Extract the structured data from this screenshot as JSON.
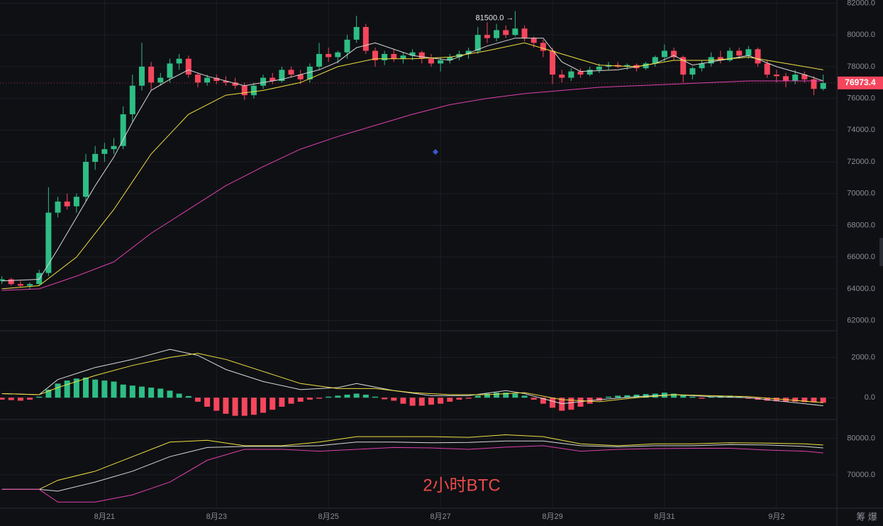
{
  "chart_data": [
    {
      "type": "candlestick",
      "categories": [
        null,
        null,
        null,
        null,
        null,
        null,
        null,
        null,
        null,
        null,
        null,
        "8月21",
        null,
        null,
        null,
        null,
        null,
        null,
        null,
        null,
        null,
        null,
        null,
        "8月23",
        null,
        null,
        null,
        null,
        null,
        null,
        null,
        null,
        null,
        null,
        null,
        "8月25",
        null,
        null,
        null,
        null,
        null,
        null,
        null,
        null,
        null,
        null,
        null,
        "8月27",
        null,
        null,
        null,
        null,
        null,
        null,
        null,
        null,
        null,
        null,
        null,
        "8月29",
        null,
        null,
        null,
        null,
        null,
        null,
        null,
        null,
        null,
        null,
        null,
        "8月31",
        null,
        null,
        null,
        null,
        null,
        null,
        null,
        null,
        null,
        null,
        null,
        "9月2",
        null,
        null,
        null,
        null,
        null
      ],
      "ohlc": [
        [
          64500,
          64800,
          64300,
          64600
        ],
        [
          64600,
          64700,
          64200,
          64300
        ],
        [
          64300,
          64500,
          64100,
          64200
        ],
        [
          64200,
          64400,
          64000,
          64300
        ],
        [
          64300,
          65200,
          64200,
          65000
        ],
        [
          65000,
          70400,
          64800,
          68800
        ],
        [
          68800,
          69800,
          68500,
          69500
        ],
        [
          69500,
          70000,
          69000,
          69200
        ],
        [
          69200,
          70000,
          68800,
          69800
        ],
        [
          69800,
          72500,
          69500,
          72000
        ],
        [
          72000,
          73000,
          71500,
          72500
        ],
        [
          72500,
          73200,
          72000,
          72800
        ],
        [
          72800,
          73500,
          72500,
          73000
        ],
        [
          73000,
          75500,
          72800,
          75000
        ],
        [
          75000,
          77500,
          74500,
          76800
        ],
        [
          76800,
          79500,
          76500,
          78000
        ],
        [
          78000,
          78300,
          76500,
          77000
        ],
        [
          77000,
          77600,
          76800,
          77300
        ],
        [
          77300,
          78500,
          77000,
          78200
        ],
        [
          78200,
          78800,
          77800,
          78500
        ],
        [
          78500,
          78700,
          77300,
          77500
        ],
        [
          77500,
          77600,
          76700,
          77000
        ],
        [
          77000,
          77500,
          76800,
          77300
        ],
        [
          77300,
          77500,
          76900,
          77100
        ],
        [
          77100,
          77400,
          76800,
          77000
        ],
        [
          77000,
          77300,
          76600,
          76800
        ],
        [
          76800,
          77000,
          75900,
          76200
        ],
        [
          76200,
          77000,
          76000,
          76800
        ],
        [
          76800,
          77500,
          76600,
          77300
        ],
        [
          77300,
          77600,
          76900,
          77100
        ],
        [
          77100,
          78000,
          77000,
          77800
        ],
        [
          77800,
          78000,
          77300,
          77500
        ],
        [
          77500,
          77800,
          76900,
          77200
        ],
        [
          77200,
          78200,
          77000,
          78000
        ],
        [
          78000,
          79500,
          77800,
          78800
        ],
        [
          78800,
          79200,
          78300,
          78600
        ],
        [
          78600,
          79000,
          78200,
          78900
        ],
        [
          78900,
          80000,
          78500,
          79700
        ],
        [
          79700,
          81200,
          79500,
          80500
        ],
        [
          80500,
          80700,
          78800,
          79000
        ],
        [
          79000,
          79200,
          78000,
          78400
        ],
        [
          78400,
          79000,
          78100,
          78800
        ],
        [
          78800,
          79100,
          78300,
          78500
        ],
        [
          78500,
          78900,
          78200,
          78700
        ],
        [
          78700,
          79100,
          78400,
          78900
        ],
        [
          78900,
          79000,
          78200,
          78500
        ],
        [
          78500,
          78800,
          78000,
          78200
        ],
        [
          78200,
          78600,
          77700,
          78400
        ],
        [
          78400,
          78800,
          78200,
          78600
        ],
        [
          78600,
          79000,
          78400,
          78800
        ],
        [
          78800,
          79200,
          78500,
          79000
        ],
        [
          79000,
          80500,
          78800,
          80000
        ],
        [
          80000,
          80800,
          79500,
          79800
        ],
        [
          79800,
          80700,
          79600,
          80300
        ],
        [
          80300,
          80600,
          79800,
          80000
        ],
        [
          80000,
          81500,
          79900,
          80400
        ],
        [
          80400,
          80600,
          79600,
          79800
        ],
        [
          79800,
          79900,
          79200,
          79500
        ],
        [
          79500,
          79700,
          78600,
          79000
        ],
        [
          79000,
          79200,
          76900,
          77500
        ],
        [
          77500,
          77800,
          77000,
          77300
        ],
        [
          77300,
          77900,
          77100,
          77700
        ],
        [
          77700,
          77900,
          77300,
          77500
        ],
        [
          77500,
          78000,
          77400,
          77800
        ],
        [
          77800,
          78200,
          77600,
          78000
        ],
        [
          78000,
          78300,
          77800,
          78100
        ],
        [
          78100,
          78300,
          77900,
          78000
        ],
        [
          78000,
          78200,
          77800,
          78100
        ],
        [
          78100,
          78200,
          77700,
          77900
        ],
        [
          77900,
          78300,
          77800,
          78200
        ],
        [
          78200,
          78700,
          78000,
          78600
        ],
        [
          78600,
          79400,
          78300,
          79000
        ],
        [
          79000,
          79200,
          78400,
          78600
        ],
        [
          78600,
          78700,
          77000,
          77500
        ],
        [
          77500,
          78000,
          77200,
          77900
        ],
        [
          77900,
          78400,
          77700,
          78200
        ],
        [
          78200,
          78900,
          78000,
          78600
        ],
        [
          78600,
          79000,
          78200,
          78400
        ],
        [
          78400,
          79200,
          78300,
          79000
        ],
        [
          79000,
          79200,
          78500,
          78700
        ],
        [
          78700,
          79300,
          78500,
          79100
        ],
        [
          79100,
          79200,
          78000,
          78200
        ],
        [
          78200,
          78400,
          77300,
          77500
        ],
        [
          77500,
          77800,
          77000,
          77400
        ],
        [
          77400,
          77600,
          76700,
          77100
        ],
        [
          77100,
          77800,
          76900,
          77500
        ],
        [
          77500,
          77700,
          77000,
          77200
        ],
        [
          77200,
          77400,
          76200,
          76600
        ],
        [
          76600,
          77500,
          76500,
          76973.4
        ]
      ],
      "up_color": "#2ebd85",
      "down_color": "#f6465d",
      "series": [
        {
          "color": "#d9d9d9",
          "x": [
            0,
            4,
            6,
            8,
            10,
            12,
            14,
            16,
            18,
            20,
            22,
            26,
            30,
            34,
            36,
            38,
            40,
            44,
            48,
            52,
            55,
            58,
            60,
            62,
            66,
            70,
            72,
            74,
            78,
            80,
            83,
            86,
            88
          ],
          "values": [
            64500,
            64600,
            66500,
            68500,
            70500,
            72300,
            74500,
            76500,
            77200,
            77800,
            77400,
            76800,
            77200,
            77800,
            78300,
            79200,
            79500,
            78700,
            78400,
            79300,
            79800,
            79800,
            78300,
            77700,
            77800,
            78200,
            78700,
            78100,
            78500,
            78700,
            78000,
            77500,
            77100
          ]
        },
        {
          "color": "#f0e040",
          "x": [
            0,
            4,
            8,
            12,
            16,
            20,
            24,
            28,
            32,
            36,
            40,
            44,
            48,
            52,
            56,
            60,
            64,
            68,
            72,
            76,
            80,
            84,
            88
          ],
          "values": [
            64000,
            64200,
            66000,
            69000,
            72500,
            75000,
            76200,
            76500,
            77000,
            78000,
            78500,
            78500,
            78600,
            79000,
            79500,
            78800,
            78100,
            78000,
            78400,
            78400,
            78600,
            78200,
            77800
          ]
        },
        {
          "color": "#e040b0",
          "x": [
            0,
            4,
            8,
            12,
            16,
            20,
            24,
            28,
            32,
            36,
            40,
            44,
            48,
            52,
            56,
            60,
            64,
            68,
            72,
            76,
            80,
            84,
            88
          ],
          "values": [
            63900,
            64000,
            64800,
            65700,
            67500,
            69000,
            70500,
            71700,
            72800,
            73600,
            74300,
            75000,
            75600,
            76000,
            76300,
            76500,
            76700,
            76800,
            76900,
            77000,
            77100,
            77100,
            77100
          ]
        }
      ],
      "ylim": [
        61400,
        82200
      ],
      "yticks": [
        {
          "value": 82000,
          "label": "82000.0"
        },
        {
          "value": 80000,
          "label": "80000.0"
        },
        {
          "value": 78000,
          "label": "78000.0"
        },
        {
          "value": 76000,
          "label": "76000.0"
        },
        {
          "value": 74000,
          "label": "74000.0"
        },
        {
          "value": 72000,
          "label": "72000.0"
        },
        {
          "value": 70000,
          "label": "70000.0"
        },
        {
          "value": 68000,
          "label": "68000.0"
        },
        {
          "value": 66000,
          "label": "66000.0"
        },
        {
          "value": 64000,
          "label": "64000.0"
        },
        {
          "value": 62000,
          "label": "62000.0"
        }
      ],
      "grid": true,
      "high_label": "81500.0 →",
      "last_price_label": "76973.4",
      "watermark": "2小时BTC"
    },
    {
      "type": "macd",
      "values": [
        -100,
        -120,
        -150,
        -100,
        50,
        400,
        700,
        850,
        950,
        1000,
        900,
        850,
        800,
        650,
        600,
        550,
        500,
        450,
        350,
        200,
        80,
        -200,
        -450,
        -650,
        -800,
        -900,
        -900,
        -850,
        -750,
        -600,
        -450,
        -300,
        -200,
        -100,
        -50,
        50,
        100,
        150,
        200,
        150,
        50,
        -80,
        -150,
        -300,
        -400,
        -400,
        -350,
        -300,
        -200,
        -100,
        -50,
        100,
        200,
        250,
        250,
        200,
        100,
        -100,
        -300,
        -500,
        -650,
        -600,
        -450,
        -300,
        -150,
        50,
        100,
        120,
        150,
        180,
        200,
        250,
        200,
        150,
        50,
        -50,
        50,
        80,
        100,
        50,
        -50,
        -100,
        -150,
        -180,
        -200,
        -200,
        -220,
        -230,
        -250
      ],
      "series": [
        {
          "color": "#d9d9d9",
          "x": [
            0,
            4,
            6,
            10,
            14,
            18,
            21,
            24,
            28,
            32,
            36,
            38,
            42,
            46,
            50,
            54,
            56,
            60,
            64,
            68,
            72,
            76,
            80,
            84,
            88
          ],
          "values": [
            200,
            150,
            900,
            1500,
            1900,
            2400,
            2100,
            1400,
            800,
            400,
            500,
            700,
            350,
            100,
            100,
            350,
            200,
            -300,
            -100,
            50,
            150,
            50,
            0,
            -200,
            -400
          ]
        },
        {
          "color": "#f0e040",
          "x": [
            0,
            4,
            6,
            10,
            14,
            18,
            21,
            24,
            28,
            32,
            36,
            40,
            44,
            48,
            52,
            56,
            60,
            64,
            68,
            72,
            76,
            80,
            84,
            88
          ],
          "values": [
            200,
            150,
            500,
            1100,
            1600,
            2000,
            2200,
            1900,
            1300,
            700,
            450,
            450,
            250,
            150,
            150,
            250,
            -100,
            -200,
            0,
            150,
            100,
            50,
            -100,
            -250
          ]
        }
      ],
      "ylim": [
        -1050,
        3250
      ],
      "yticks": [
        {
          "value": 2000,
          "label": "2000.0"
        },
        {
          "value": 0,
          "label": "0.0"
        }
      ]
    },
    {
      "type": "line",
      "series": [
        {
          "color": "#f0e040",
          "x": [
            0,
            4,
            6,
            10,
            14,
            18,
            22,
            26,
            30,
            34,
            38,
            42,
            46,
            50,
            54,
            58,
            62,
            66,
            70,
            74,
            78,
            82,
            86,
            88
          ],
          "values": [
            66000,
            66000,
            68500,
            71000,
            75000,
            79000,
            79500,
            78000,
            78000,
            79000,
            80500,
            80500,
            80500,
            80300,
            81000,
            80500,
            78500,
            78000,
            78500,
            78500,
            78800,
            78700,
            78500,
            78200
          ]
        },
        {
          "color": "#d9d9d9",
          "x": [
            0,
            4,
            6,
            10,
            14,
            18,
            22,
            26,
            30,
            34,
            38,
            42,
            46,
            50,
            54,
            58,
            62,
            66,
            70,
            74,
            78,
            82,
            86,
            88
          ],
          "values": [
            66000,
            66000,
            65500,
            68000,
            71000,
            75000,
            77500,
            77800,
            77800,
            78000,
            79000,
            79000,
            78800,
            78900,
            79300,
            79300,
            78000,
            77700,
            78000,
            78000,
            78300,
            78200,
            77800,
            77400
          ]
        },
        {
          "color": "#e040b0",
          "x": [
            0,
            4,
            6,
            10,
            14,
            18,
            22,
            26,
            30,
            34,
            38,
            42,
            46,
            50,
            54,
            58,
            62,
            66,
            70,
            74,
            78,
            82,
            86,
            88
          ],
          "values": [
            66000,
            66000,
            62500,
            62500,
            64500,
            68000,
            74000,
            77000,
            77000,
            76500,
            77000,
            77500,
            77400,
            77000,
            77600,
            78000,
            76500,
            77000,
            77200,
            77300,
            77300,
            76800,
            76500,
            76000
          ]
        }
      ],
      "ylim": [
        61000,
        85000
      ],
      "yticks": [
        {
          "value": 80000,
          "label": "80000.0"
        },
        {
          "value": 70000,
          "label": "70000.0"
        }
      ]
    }
  ],
  "footer": {
    "icons": "筹 爆"
  }
}
